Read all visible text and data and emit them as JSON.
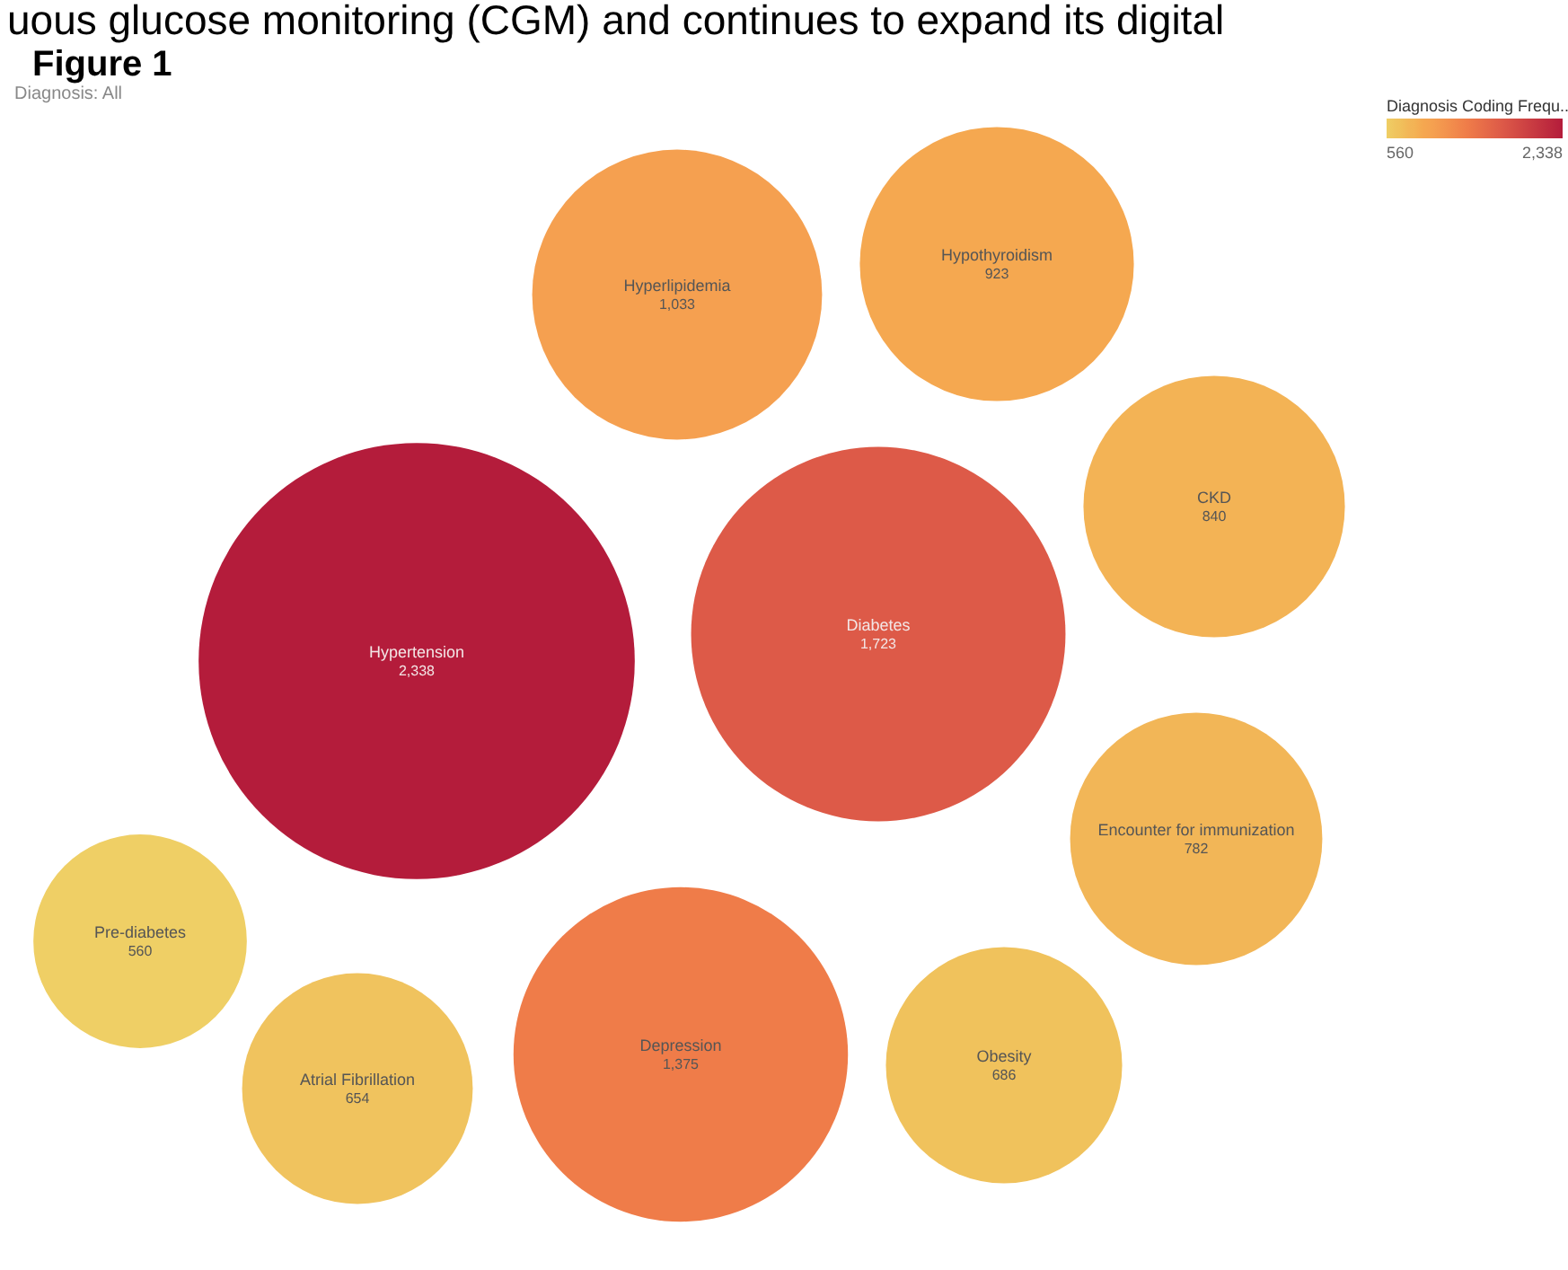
{
  "chart_data": {
    "type": "other",
    "title": "Figure 1",
    "subtitle": "Diagnosis: All",
    "annotations": [
      "uous glucose monitoring (CGM) and continues to expand its digital",
      "560",
      "2,338"
    ],
    "categories": [
      "Hypertension",
      "Diabetes",
      "Depression",
      "Hyperlipidemia",
      "Hypothyroidism",
      "CKD",
      "Encounter for immunization",
      "Obesity",
      "Atrial Fibrillation",
      "Pre-diabetes"
    ],
    "values": [
      2338,
      1723,
      1375,
      1033,
      923,
      840,
      782,
      686,
      654,
      560
    ],
    "value_labels": [
      "2,338",
      "1,723",
      "1,375",
      "1,033",
      "923",
      "840",
      "782",
      "686",
      "654",
      "560"
    ],
    "colors": [
      "#b41c3b",
      "#dd5a48",
      "#ef7c49",
      "#f5a050",
      "#f5a850",
      "#f3b355",
      "#f2b657",
      "#f0c25c",
      "#f0c35e",
      "#efcf65"
    ],
    "clabel": "Diagnosis Coding Frequ.."
  }
}
